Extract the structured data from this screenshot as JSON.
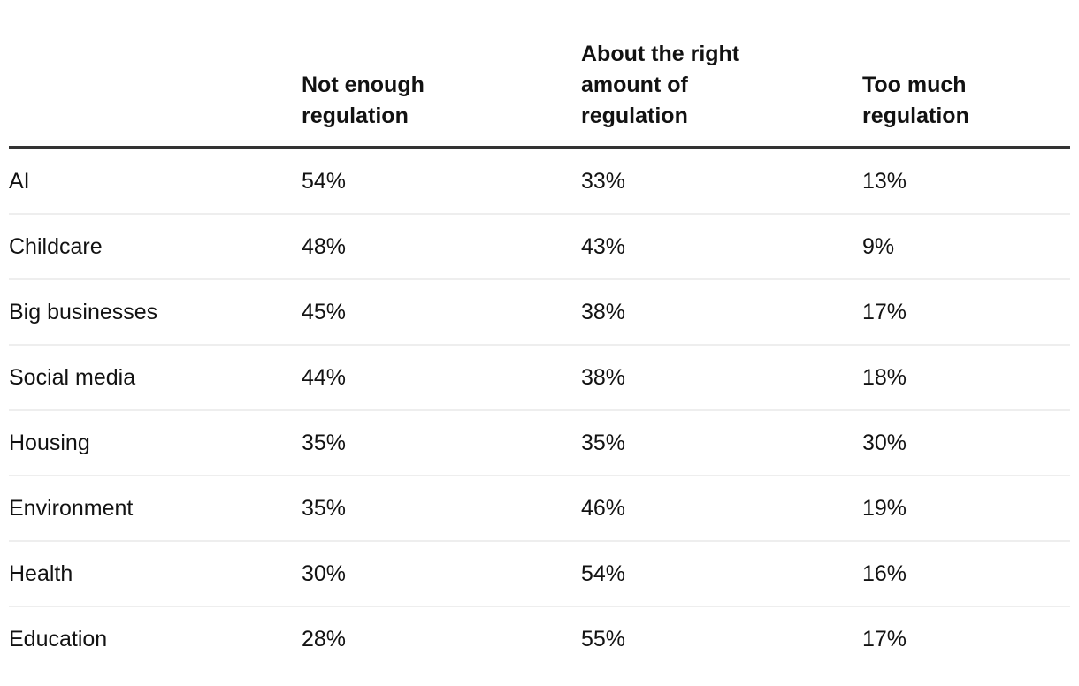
{
  "colors": {
    "text": "#121212",
    "header_rule": "#333333",
    "row_divider": "#eeeeee",
    "background": "#ffffff"
  },
  "table": {
    "row_header_label": "",
    "headers": [
      "Not enough regulation",
      "About the right amount of regulation",
      "Too much regulation"
    ],
    "rows": [
      {
        "label": "AI",
        "values": [
          "54%",
          "33%",
          "13%"
        ]
      },
      {
        "label": "Childcare",
        "values": [
          "48%",
          "43%",
          "9%"
        ]
      },
      {
        "label": "Big businesses",
        "values": [
          "45%",
          "38%",
          "17%"
        ]
      },
      {
        "label": "Social media",
        "values": [
          "44%",
          "38%",
          "18%"
        ]
      },
      {
        "label": "Housing",
        "values": [
          "35%",
          "35%",
          "30%"
        ]
      },
      {
        "label": "Environment",
        "values": [
          "35%",
          "46%",
          "19%"
        ]
      },
      {
        "label": "Health",
        "values": [
          "30%",
          "54%",
          "16%"
        ]
      },
      {
        "label": "Education",
        "values": [
          "28%",
          "55%",
          "17%"
        ]
      }
    ]
  },
  "chart_data": {
    "type": "table",
    "categories": [
      "AI",
      "Childcare",
      "Big businesses",
      "Social media",
      "Housing",
      "Environment",
      "Health",
      "Education"
    ],
    "series": [
      {
        "name": "Not enough regulation",
        "values": [
          54,
          48,
          45,
          44,
          35,
          35,
          30,
          28
        ]
      },
      {
        "name": "About the right amount of regulation",
        "values": [
          33,
          43,
          38,
          38,
          35,
          46,
          54,
          55
        ]
      },
      {
        "name": "Too much regulation",
        "values": [
          13,
          9,
          17,
          18,
          30,
          19,
          16,
          17
        ]
      }
    ],
    "unit": "%"
  }
}
